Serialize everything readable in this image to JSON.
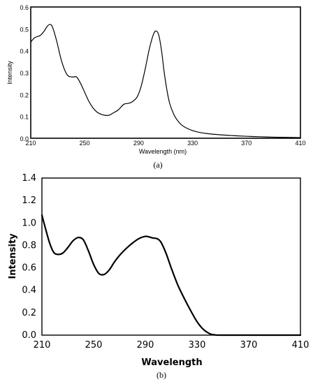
{
  "chart_data": [
    {
      "type": "line",
      "caption": "(a)",
      "xlabel": "Wavelength (nm)",
      "ylabel": "Intensity",
      "xlim": [
        210,
        410
      ],
      "ylim": [
        0,
        0.6
      ],
      "x_ticks": [
        "210",
        "250",
        "290",
        "330",
        "370",
        "410"
      ],
      "y_ticks": [
        "0.0",
        "0.1",
        "0.2",
        "0.3",
        "0.4",
        "0.5",
        "0.6"
      ],
      "grid": false,
      "series": [
        {
          "color": "#000000",
          "x": [
            210,
            213,
            217,
            220,
            222,
            224,
            226,
            229,
            233,
            237,
            241,
            244,
            247,
            250,
            253,
            256,
            259,
            262,
            265,
            268,
            271,
            275,
            279,
            283,
            286,
            289,
            292,
            295,
            298,
            301,
            303,
            305,
            307,
            309,
            311,
            313,
            316,
            319,
            322,
            326,
            330,
            335,
            340,
            350,
            360,
            370,
            380,
            390,
            400,
            410
          ],
          "y": [
            0.44,
            0.46,
            0.47,
            0.49,
            0.51,
            0.52,
            0.51,
            0.45,
            0.35,
            0.29,
            0.28,
            0.28,
            0.25,
            0.21,
            0.17,
            0.14,
            0.12,
            0.11,
            0.105,
            0.105,
            0.115,
            0.13,
            0.155,
            0.16,
            0.17,
            0.19,
            0.24,
            0.32,
            0.41,
            0.475,
            0.49,
            0.47,
            0.4,
            0.3,
            0.22,
            0.16,
            0.11,
            0.08,
            0.06,
            0.045,
            0.035,
            0.027,
            0.022,
            0.016,
            0.012,
            0.009,
            0.007,
            0.005,
            0.004,
            0.003
          ]
        }
      ]
    },
    {
      "type": "line",
      "caption": "(b)",
      "xlabel": "Wavelength",
      "ylabel": "Intensity",
      "xlim": [
        210,
        410
      ],
      "ylim": [
        0,
        1.4
      ],
      "x_ticks": [
        "210",
        "250",
        "290",
        "330",
        "370",
        "410"
      ],
      "y_ticks": [
        "0.0",
        "0.2",
        "0.4",
        "0.6",
        "0.8",
        "1.0",
        "1.2",
        "1.4"
      ],
      "grid": false,
      "series": [
        {
          "color": "#000000",
          "x": [
            210,
            213,
            216,
            219,
            222,
            226,
            230,
            234,
            238,
            242,
            246,
            250,
            254,
            258,
            262,
            266,
            270,
            275,
            280,
            285,
            290,
            293,
            296,
            299,
            302,
            306,
            310,
            315,
            320,
            325,
            330,
            335,
            340,
            344,
            348,
            352,
            360,
            370,
            380,
            390,
            400,
            410
          ],
          "y": [
            1.07,
            0.94,
            0.82,
            0.74,
            0.72,
            0.73,
            0.78,
            0.84,
            0.87,
            0.85,
            0.75,
            0.63,
            0.55,
            0.54,
            0.58,
            0.65,
            0.71,
            0.77,
            0.82,
            0.86,
            0.88,
            0.875,
            0.865,
            0.86,
            0.83,
            0.73,
            0.6,
            0.45,
            0.33,
            0.22,
            0.12,
            0.05,
            0.012,
            0.002,
            0.0,
            0.0,
            0.0,
            0.0,
            0.0,
            0.0,
            0.0,
            0.0
          ]
        }
      ]
    }
  ]
}
